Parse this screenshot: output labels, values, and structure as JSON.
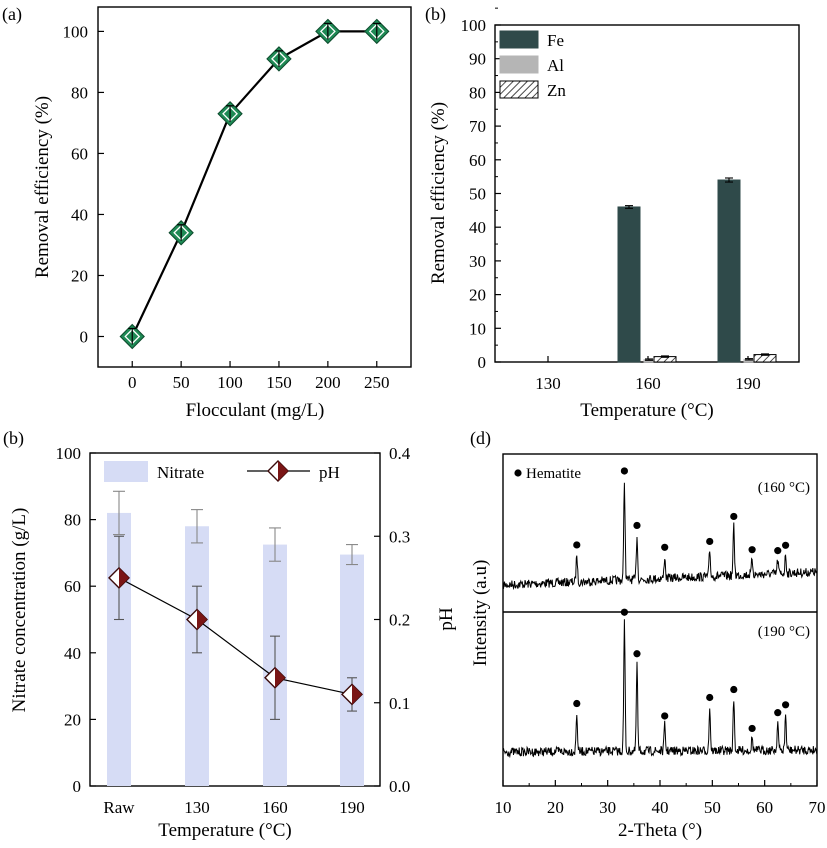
{
  "chart_data": [
    {
      "panel": "(a)",
      "type": "line",
      "xlabel": "Flocculant (mg/L)",
      "ylabel": "Removal efficiency (%)",
      "x": [
        0,
        50,
        100,
        150,
        200,
        250
      ],
      "xticks": [
        "0",
        "50",
        "100",
        "150",
        "200",
        "250"
      ],
      "xlim": [
        -35,
        285
      ],
      "yticks": [
        "0",
        "20",
        "40",
        "60",
        "80",
        "100"
      ],
      "ylim": [
        -10,
        108
      ],
      "series": [
        {
          "name": "Removal efficiency",
          "values": [
            0,
            34,
            73,
            91,
            100,
            100
          ],
          "color": "#1f8a55",
          "marker": "diamond"
        }
      ]
    },
    {
      "panel": "(b)",
      "type": "bar",
      "xlabel": "Temperature (°C)",
      "ylabel": "Removal efficiency (%)",
      "categories": [
        "130",
        "160",
        "190"
      ],
      "ylim": [
        0,
        100
      ],
      "yticks": [
        "0",
        "10",
        "20",
        "30",
        "40",
        "50",
        "60",
        "70",
        "80",
        "90",
        "100"
      ],
      "legend_position": "top-left",
      "series": [
        {
          "name": "Fe",
          "values": [
            0,
            46,
            54
          ],
          "errors": [
            0,
            0.4,
            0.6
          ],
          "color": "#2f4a4a",
          "pattern": "solid"
        },
        {
          "name": "Al",
          "values": [
            0,
            0.7,
            0.8
          ],
          "errors": [
            0,
            0.2,
            0.2
          ],
          "color": "#b5b5b5",
          "pattern": "solid"
        },
        {
          "name": "Zn",
          "values": [
            0,
            1.6,
            2.2
          ],
          "errors": [
            0,
            0.2,
            0.2
          ],
          "color": "#ffffff",
          "pattern": "hatch"
        }
      ]
    },
    {
      "panel": "(b)",
      "type": "bar",
      "xlabel": "Temperature (°C)",
      "ylabel": "Nitrate concentration (g/L)",
      "y2label": "pH",
      "categories": [
        "Raw",
        "130",
        "160",
        "190"
      ],
      "ylim": [
        0,
        100
      ],
      "yticks": [
        "0",
        "20",
        "40",
        "60",
        "80",
        "100"
      ],
      "y2lim": [
        0,
        0.4
      ],
      "y2ticks": [
        "0.0",
        "0.1",
        "0.2",
        "0.3",
        "0.4"
      ],
      "legend_position": "top",
      "series": [
        {
          "name": "Nitrate",
          "axis": "left",
          "kind": "bar",
          "values": [
            82,
            78,
            72.5,
            69.5
          ],
          "errors": [
            6.5,
            5,
            5,
            3
          ],
          "color": "#d6dcf5"
        },
        {
          "name": "pH",
          "axis": "right",
          "kind": "line",
          "values": [
            0.25,
            0.2,
            0.13,
            0.11
          ],
          "errors": [
            0.05,
            0.04,
            0.05,
            0.02
          ],
          "color": "#7a1515",
          "marker": "half-filled diamond"
        }
      ]
    },
    {
      "panel": "(d)",
      "type": "line",
      "xlabel": "2-Theta (°)",
      "ylabel": "Intensity (a.u)",
      "xlim": [
        10,
        70
      ],
      "xticks": [
        "10",
        "20",
        "30",
        "40",
        "50",
        "60",
        "70"
      ],
      "legend": "Hematite",
      "series": [
        {
          "name": "(160 °C)",
          "peaks_2theta": [
            24.1,
            33.2,
            35.6,
            40.9,
            49.5,
            54.1,
            57.6,
            62.5,
            64.0
          ],
          "peak_rel_intensity": [
            0.28,
            1.0,
            0.45,
            0.22,
            0.26,
            0.5,
            0.16,
            0.14,
            0.19
          ]
        },
        {
          "name": "(190 °C)",
          "peaks_2theta": [
            24.1,
            33.2,
            35.6,
            40.9,
            49.5,
            54.1,
            57.6,
            62.5,
            64.0
          ],
          "peak_rel_intensity": [
            0.3,
            1.0,
            0.68,
            0.2,
            0.34,
            0.4,
            0.1,
            0.22,
            0.28
          ]
        }
      ]
    }
  ]
}
